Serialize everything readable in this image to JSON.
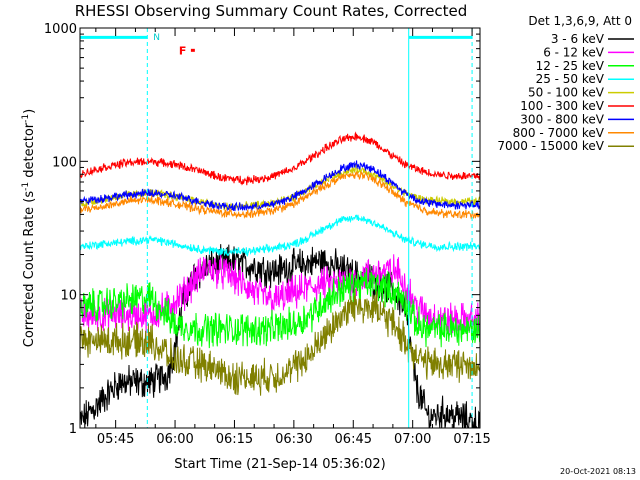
{
  "chart_data": {
    "type": "line",
    "title": "RHESSI Observing Summary Count Rates, Corrected",
    "xlabel": "Start Time (21-Sep-14 05:36:02)",
    "ylabel_main": "Corrected Count Rate (s",
    "ylabel_sup1": "-1",
    "ylabel_mid": " detector",
    "ylabel_sup2": "-1",
    "ylabel_end": ")",
    "y_scale": "log",
    "ylim": [
      1,
      1000
    ],
    "xlim_min": [
      0,
      101
    ],
    "x_ticks": [
      {
        "min": 9,
        "label": "05:45"
      },
      {
        "min": 24,
        "label": "06:00"
      },
      {
        "min": 39,
        "label": "06:15"
      },
      {
        "min": 54,
        "label": "06:30"
      },
      {
        "min": 69,
        "label": "06:45"
      },
      {
        "min": 84,
        "label": "07:00"
      },
      {
        "min": 99,
        "label": "07:15"
      }
    ],
    "y_ticks": [
      {
        "value": 1,
        "label": "1"
      },
      {
        "value": 10,
        "label": "10"
      },
      {
        "value": 100,
        "label": "100"
      },
      {
        "value": 1000,
        "label": "1000"
      }
    ],
    "legend_title": "Det 1,3,6,9, Att 0",
    "legend_position": "top-right",
    "series": [
      {
        "name": "3 - 6 keV",
        "color": "#000000",
        "x": [
          0,
          10,
          18,
          22,
          24,
          26,
          29,
          32,
          35,
          38,
          41,
          45,
          49,
          53,
          57,
          61,
          65,
          69,
          73,
          76,
          79,
          82,
          85,
          88,
          92,
          96,
          100
        ],
        "values": [
          1.1,
          2.2,
          2.2,
          2.5,
          4.0,
          9,
          14,
          16,
          17,
          18,
          17,
          16,
          15,
          16,
          17,
          18,
          16,
          14,
          13,
          12,
          11,
          8,
          2,
          1.2,
          1.3,
          1.2,
          1.1
        ]
      },
      {
        "name": "6 - 12 keV",
        "color": "#ff00ff",
        "x": [
          0,
          6,
          12,
          18,
          22,
          26,
          29,
          32,
          35,
          38,
          41,
          45,
          49,
          53,
          57,
          61,
          65,
          69,
          73,
          77,
          80,
          82,
          85,
          88,
          92,
          96,
          100
        ],
        "values": [
          7,
          7,
          7,
          7,
          8,
          10,
          13,
          16,
          15,
          14,
          12,
          10,
          9,
          10,
          11,
          12,
          12,
          13,
          14,
          15,
          15,
          12,
          8,
          7,
          6.5,
          6.5,
          6.5
        ]
      },
      {
        "name": "12 - 25 keV",
        "color": "#00ff00",
        "x": [
          0,
          6,
          12,
          18,
          24,
          30,
          36,
          42,
          48,
          54,
          58,
          62,
          66,
          70,
          74,
          78,
          80,
          82,
          85,
          88,
          92,
          96,
          100
        ],
        "values": [
          8,
          8.5,
          9,
          9.5,
          6,
          5.5,
          5.5,
          5.5,
          5.5,
          6,
          7,
          9,
          11,
          12,
          12,
          11,
          10,
          9,
          6,
          5.5,
          5.5,
          5.5,
          5.5
        ]
      },
      {
        "name": "25 - 50 keV",
        "color": "#00ffff",
        "x": [
          0,
          6,
          12,
          18,
          24,
          30,
          36,
          42,
          48,
          54,
          58,
          62,
          66,
          70,
          74,
          78,
          82,
          86,
          90,
          94,
          100
        ],
        "values": [
          23,
          24,
          25,
          26,
          24,
          22,
          21,
          21,
          22,
          24,
          27,
          32,
          36,
          38,
          35,
          30,
          26,
          24,
          23,
          23,
          23
        ]
      },
      {
        "name": "50 - 100 keV",
        "color": "#cccc00",
        "x": [
          0,
          6,
          12,
          18,
          24,
          30,
          36,
          42,
          48,
          54,
          58,
          62,
          66,
          70,
          74,
          78,
          82,
          86,
          90,
          94,
          100
        ],
        "values": [
          48,
          52,
          56,
          58,
          55,
          50,
          46,
          46,
          48,
          54,
          62,
          72,
          82,
          88,
          80,
          68,
          58,
          52,
          50,
          50,
          50
        ]
      },
      {
        "name": "100 - 300 keV",
        "color": "#ff0000",
        "x": [
          0,
          6,
          12,
          18,
          24,
          30,
          36,
          42,
          48,
          54,
          58,
          62,
          66,
          70,
          74,
          78,
          82,
          86,
          90,
          94,
          100
        ],
        "values": [
          80,
          90,
          98,
          100,
          95,
          85,
          75,
          72,
          76,
          88,
          105,
          125,
          145,
          155,
          140,
          115,
          95,
          85,
          80,
          78,
          78
        ]
      },
      {
        "name": "300 - 800 keV",
        "color": "#0000ff",
        "x": [
          0,
          6,
          12,
          18,
          24,
          30,
          36,
          42,
          48,
          54,
          58,
          62,
          66,
          70,
          74,
          78,
          82,
          86,
          90,
          94,
          100
        ],
        "values": [
          50,
          53,
          56,
          58,
          55,
          50,
          46,
          45,
          47,
          54,
          63,
          75,
          88,
          95,
          88,
          72,
          58,
          50,
          48,
          47,
          47
        ]
      },
      {
        "name": "800 - 7000 keV",
        "color": "#ff8800",
        "x": [
          0,
          6,
          12,
          18,
          24,
          30,
          36,
          42,
          48,
          54,
          58,
          62,
          66,
          70,
          74,
          78,
          82,
          86,
          90,
          94,
          100
        ],
        "values": [
          43,
          46,
          50,
          52,
          48,
          44,
          41,
          40,
          42,
          48,
          56,
          66,
          76,
          80,
          74,
          62,
          50,
          44,
          41,
          40,
          40
        ]
      },
      {
        "name": "7000 - 15000 keV",
        "color": "#808000",
        "x": [
          0,
          6,
          12,
          18,
          24,
          30,
          34,
          38,
          42,
          46,
          50,
          54,
          58,
          62,
          66,
          70,
          74,
          78,
          80,
          82,
          85,
          88,
          92,
          96,
          100
        ],
        "values": [
          4.5,
          4.5,
          4.5,
          4.5,
          3.2,
          3.0,
          2.8,
          2.4,
          2.4,
          2.4,
          2.5,
          2.8,
          3.5,
          5,
          7,
          8.5,
          8,
          6.5,
          5.5,
          4.5,
          3.5,
          3,
          3,
          3,
          3
        ]
      }
    ],
    "annotations": {
      "decimation_bars": [
        {
          "x0": 0,
          "x1": 17
        },
        {
          "x0": 83,
          "x1": 99
        }
      ],
      "decimation_level": 850,
      "attenuator_lines_x": [
        17,
        83,
        99
      ],
      "cyan_top_label": "N",
      "cyan_top_label_x": 18,
      "flare_label": "F",
      "flare_x0": 28,
      "flare_x1": 29,
      "flare_level": 680
    },
    "grid": false,
    "generated_stamp": "20-Oct-2021 08:13"
  }
}
